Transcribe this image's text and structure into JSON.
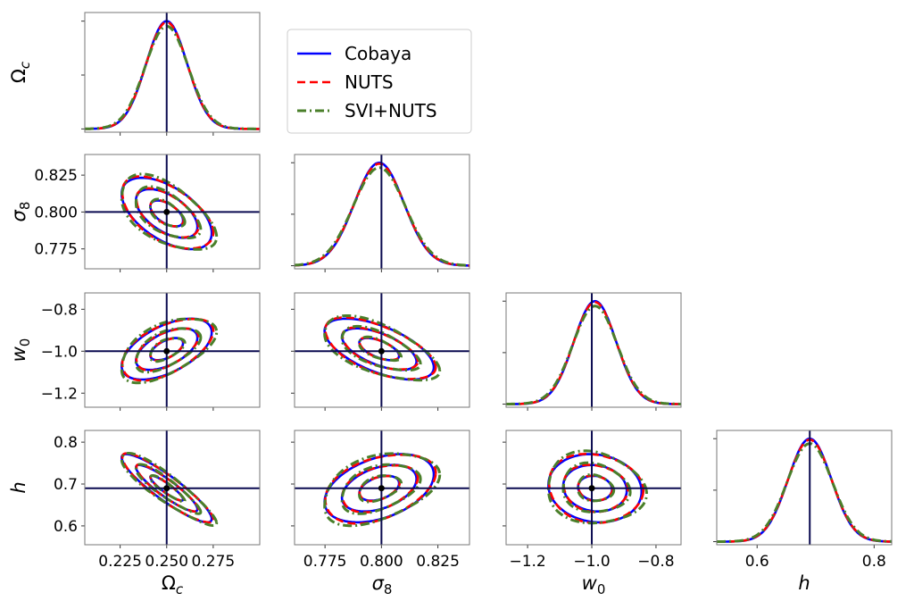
{
  "chart_data": {
    "type": "corner",
    "parameters": [
      {
        "symbol": "Ω",
        "sub": "c",
        "italic": false,
        "lim": [
          0.206,
          0.3
        ],
        "ticks": [
          0.225,
          0.25,
          0.275
        ],
        "tick_labels": [
          "0.225",
          "0.250",
          "0.275"
        ],
        "truth": 0.25,
        "mean": 0.25,
        "std": 0.011
      },
      {
        "symbol": "σ",
        "sub": "8",
        "italic": true,
        "lim": [
          0.7615,
          0.839
        ],
        "ticks": [
          0.775,
          0.8,
          0.825
        ],
        "tick_labels": [
          "0.775",
          "0.800",
          "0.825"
        ],
        "truth": 0.8,
        "mean": 0.799,
        "std": 0.011
      },
      {
        "symbol": "w",
        "sub": "0",
        "italic": true,
        "lim": [
          -1.267,
          -0.722
        ],
        "ticks": [
          -1.2,
          -1.0,
          -0.8
        ],
        "tick_labels": [
          "−1.2",
          "−1.0",
          "−0.8"
        ],
        "truth": -1.0,
        "mean": -0.99,
        "std": 0.066
      },
      {
        "symbol": "h",
        "sub": "",
        "italic": true,
        "lim": [
          0.531,
          0.83
        ],
        "ticks": [
          0.6,
          0.8
        ],
        "tick_labels": [
          "0.6",
          "0.8"
        ],
        "ylim": [
          0.555,
          0.828
        ],
        "yticks": [
          0.6,
          0.7,
          0.8
        ],
        "ytick_labels": [
          "0.6",
          "0.7",
          "0.8"
        ],
        "truth": 0.69,
        "mean": 0.69,
        "std": 0.037
      }
    ],
    "correlations": [
      [
        1,
        -0.55,
        0.55,
        -0.9
      ],
      [
        -0.55,
        1,
        -0.6,
        0.4
      ],
      [
        0.55,
        -0.6,
        1,
        -0.1
      ],
      [
        -0.9,
        0.4,
        -0.1,
        1
      ]
    ],
    "contour_levels_sigma": [
      0.8,
      1.5,
      2.2
    ],
    "series": [
      {
        "name": "Cobaya",
        "color": "#0000ff",
        "style": "solid",
        "width_scale": 1.0
      },
      {
        "name": "NUTS",
        "color": "#ff0000",
        "style": "dashed",
        "width_scale": 1.01
      },
      {
        "name": "SVI+NUTS",
        "color": "#4a7f2a",
        "style": "dashdot",
        "width_scale": 1.05
      }
    ],
    "truth_line_color": "#0a0a50",
    "legend_position": "top-center",
    "grid": false
  }
}
